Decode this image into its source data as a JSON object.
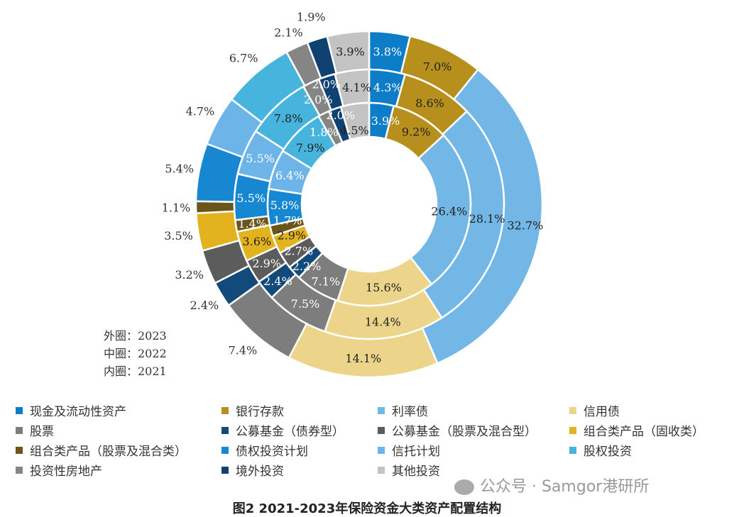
{
  "chart_data": {
    "type": "pie",
    "subtype": "multi-ring donut",
    "title": "图2  2021-2023年保险资金大类资产配置结构",
    "rings": [
      {
        "name": "外圈：2023",
        "year": "2023",
        "position": "outer"
      },
      {
        "name": "中圈：2022",
        "year": "2022",
        "position": "middle"
      },
      {
        "name": "内圈：2021",
        "year": "2021",
        "position": "inner"
      }
    ],
    "categories": [
      "现金及流动性资产",
      "银行存款",
      "利率债",
      "信用债",
      "股票",
      "公募基金（债券型）",
      "公募基金（股票及混合型）",
      "组合类产品（固收类）",
      "组合类产品（股票及混合类）",
      "债权投资计划",
      "信托计划",
      "股权投资",
      "投资性房地产",
      "境外投资",
      "其他投资"
    ],
    "colors": [
      "#0c7dc6",
      "#b68f1c",
      "#72b7e6",
      "#ecd58b",
      "#7d7d7d",
      "#124a7c",
      "#5c5c5c",
      "#e3b21f",
      "#6b5519",
      "#1687d0",
      "#6db5e8",
      "#47b4dd",
      "#858585",
      "#0f4272",
      "#c3c3c3"
    ],
    "label_colors": [
      "#fff",
      "#222",
      "#222",
      "#222",
      "#fff",
      "#fff",
      "#fff",
      "#222",
      "#fff",
      "#fff",
      "#fff",
      "#222",
      "#fff",
      "#fff",
      "#222"
    ],
    "series": [
      {
        "name": "2023",
        "values": [
          3.8,
          7.0,
          32.7,
          14.1,
          7.4,
          2.4,
          3.2,
          3.5,
          1.1,
          5.4,
          4.7,
          6.7,
          2.1,
          1.9,
          3.9
        ]
      },
      {
        "name": "2022",
        "values": [
          4.3,
          8.6,
          28.1,
          14.4,
          7.5,
          2.4,
          2.9,
          3.6,
          1.4,
          5.5,
          5.5,
          7.8,
          2.0,
          2.0,
          4.1
        ]
      },
      {
        "name": "2021",
        "values": [
          3.9,
          9.2,
          26.4,
          15.6,
          7.1,
          2.2,
          2.7,
          2.9,
          1.7,
          5.8,
          6.4,
          7.9,
          1.8,
          2.0,
          4.5
        ]
      }
    ],
    "outer_labels_outside": [
      4,
      5,
      6,
      7,
      8,
      9,
      10,
      11,
      12,
      13
    ],
    "unit": "%",
    "legend_position": "bottom"
  },
  "ring_notes": [
    "外圈：2023",
    "中圈：2022",
    "内圈：2021"
  ],
  "watermark": "公众号 · Samgor港研所"
}
